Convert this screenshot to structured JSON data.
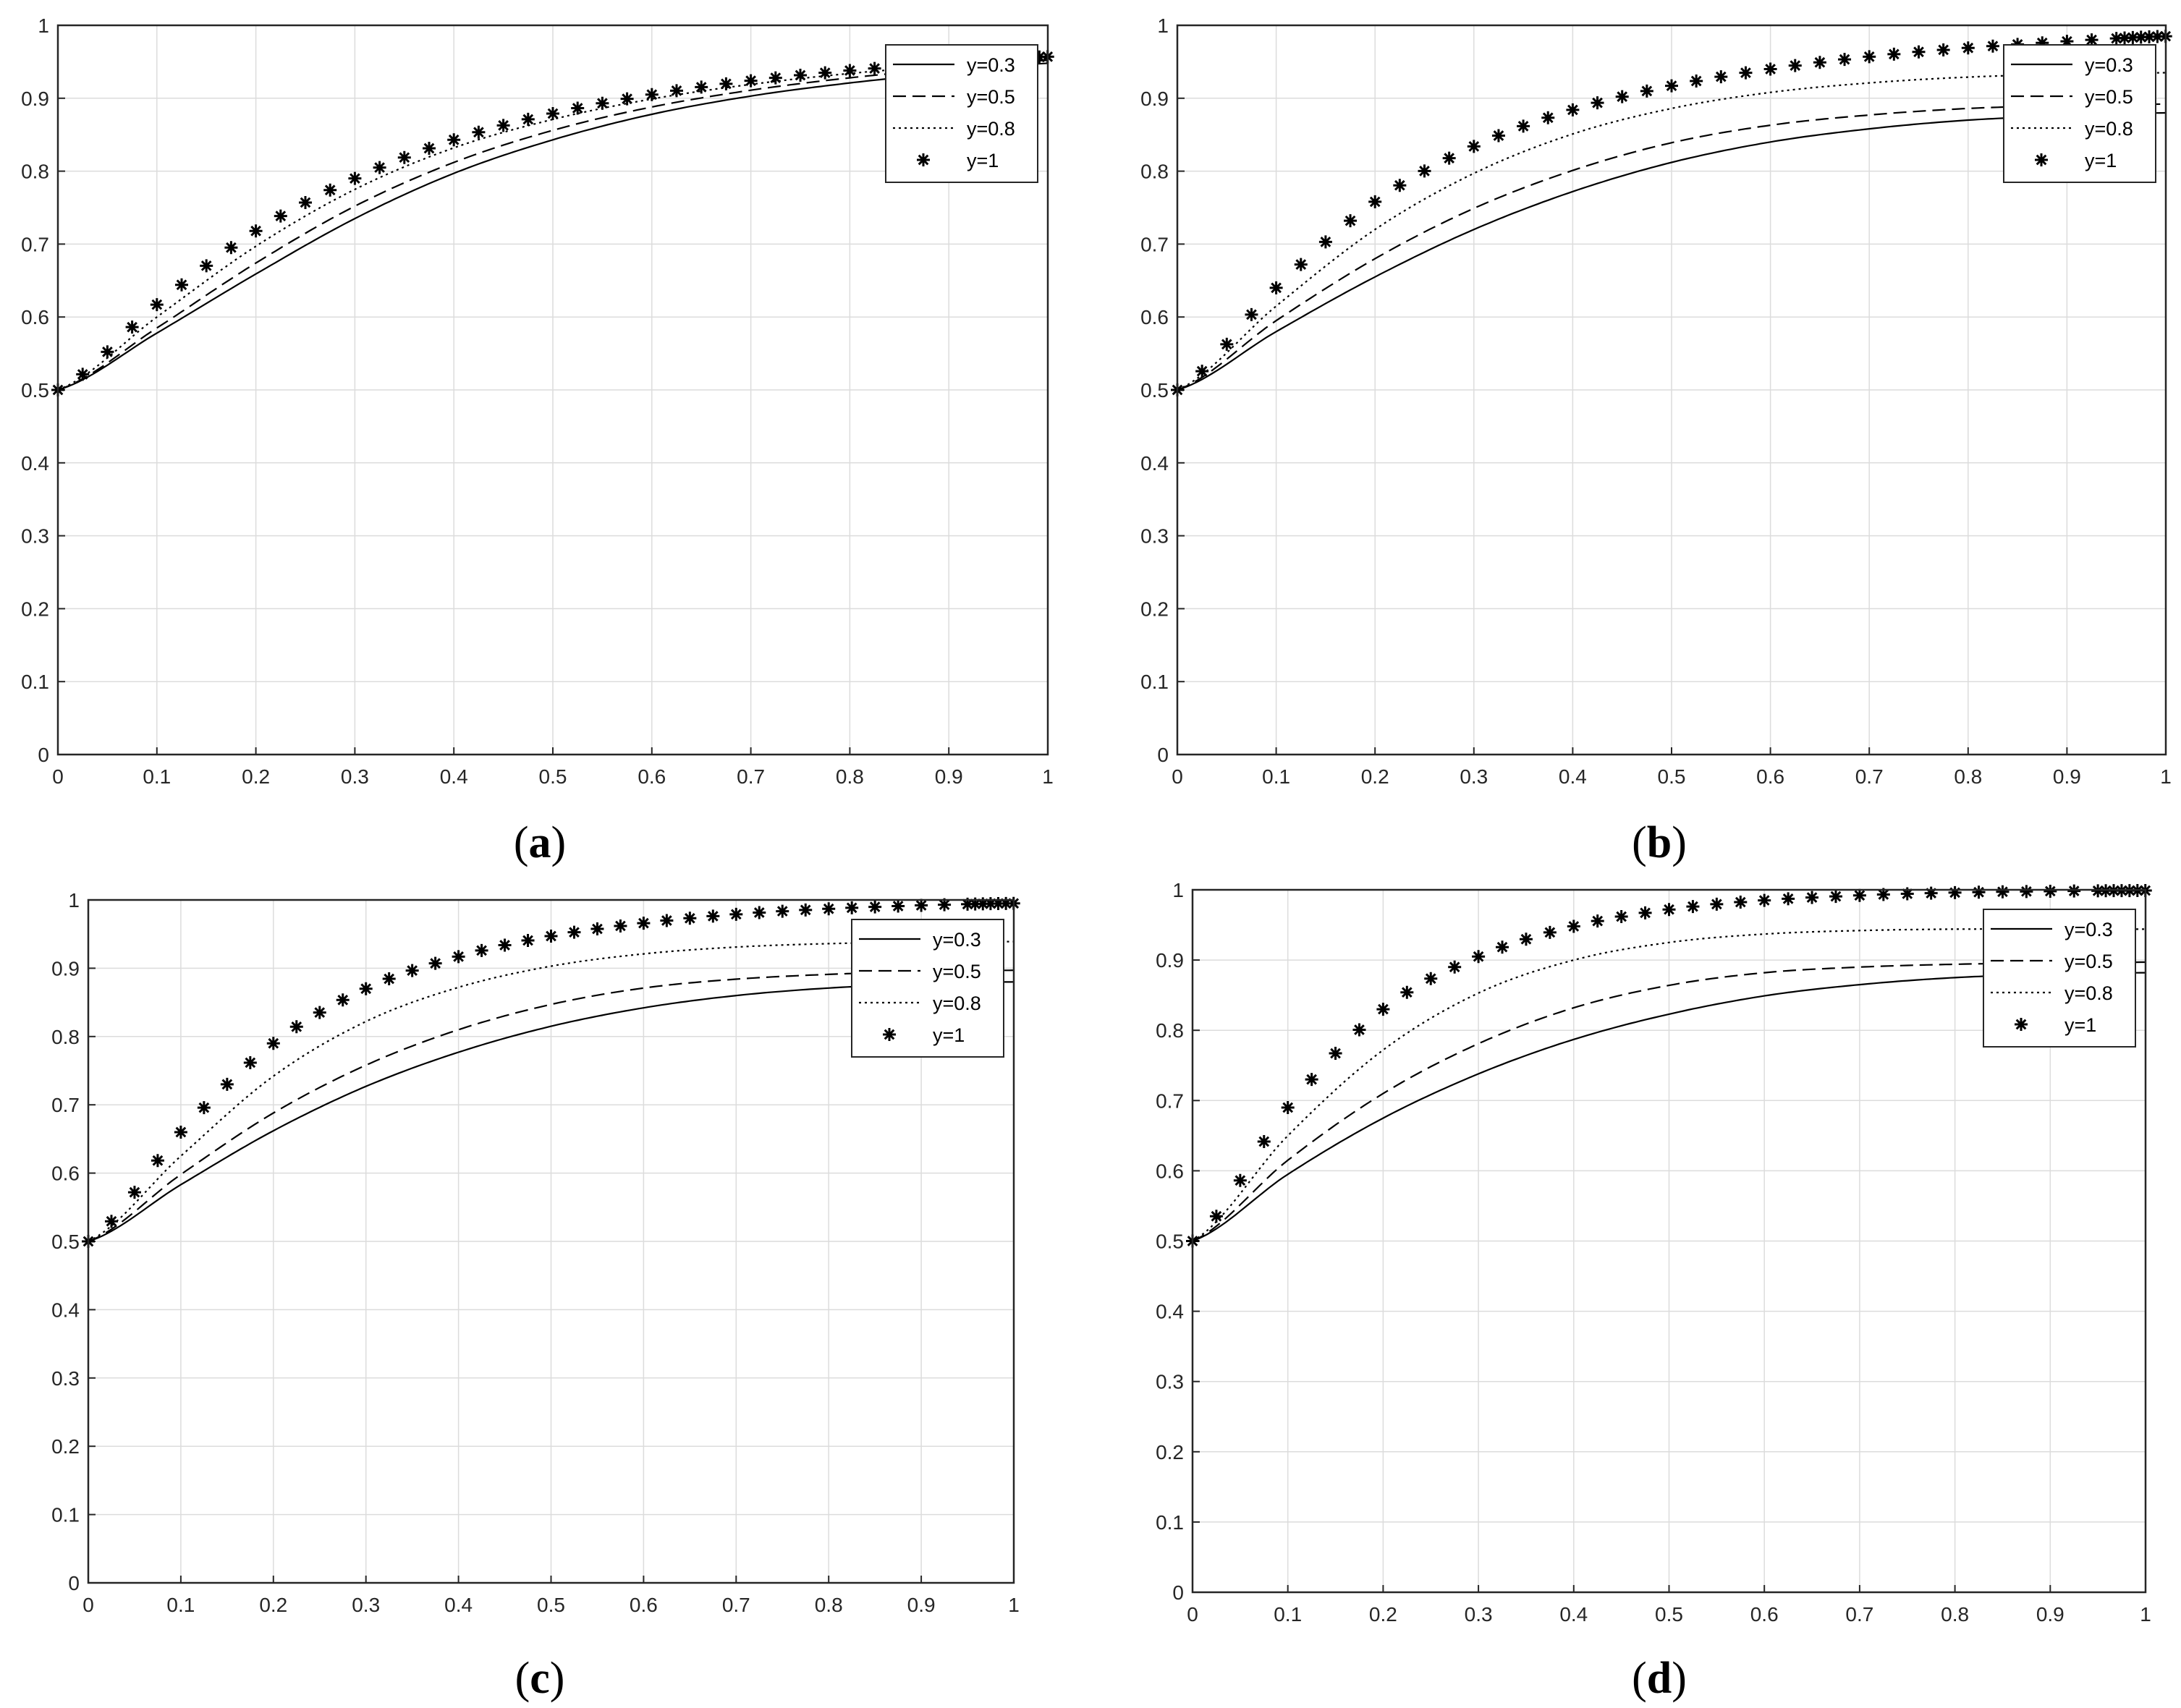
{
  "chart_data": [
    {
      "type": "line",
      "caption": "(a)",
      "caption_letter": "a",
      "xlim": [
        0,
        1
      ],
      "ylim": [
        0,
        1
      ],
      "x_ticks": [
        "0",
        "0.1",
        "0.2",
        "0.3",
        "0.4",
        "0.5",
        "0.6",
        "0.7",
        "0.8",
        "0.9",
        "1"
      ],
      "y_ticks": [
        "0",
        "0.1",
        "0.2",
        "0.3",
        "0.4",
        "0.5",
        "0.6",
        "0.7",
        "0.8",
        "0.9",
        "1"
      ],
      "grid": true,
      "legend_position": "top-right",
      "series": [
        {
          "name": "y=0.3",
          "style": "solid",
          "x": [
            0,
            0.1,
            0.2,
            0.3,
            0.4,
            0.5,
            0.6,
            0.7,
            0.8,
            0.9,
            1.0
          ],
          "values": [
            0.5,
            0.578,
            0.659,
            0.735,
            0.797,
            0.843,
            0.878,
            0.903,
            0.921,
            0.935,
            0.948
          ]
        },
        {
          "name": "y=0.5",
          "style": "dashed",
          "x": [
            0,
            0.1,
            0.2,
            0.3,
            0.4,
            0.5,
            0.6,
            0.7,
            0.8,
            0.9,
            1.0
          ],
          "values": [
            0.5,
            0.585,
            0.674,
            0.752,
            0.812,
            0.856,
            0.888,
            0.911,
            0.928,
            0.941,
            0.952
          ]
        },
        {
          "name": "y=0.8",
          "style": "dotted",
          "x": [
            0,
            0.1,
            0.2,
            0.3,
            0.4,
            0.5,
            0.6,
            0.7,
            0.8,
            0.9,
            1.0
          ],
          "values": [
            0.5,
            0.6,
            0.697,
            0.775,
            0.832,
            0.871,
            0.899,
            0.919,
            0.934,
            0.945,
            0.955
          ]
        },
        {
          "name": "y=1",
          "style": "asterisk",
          "x": [
            0,
            0.1,
            0.2,
            0.3,
            0.4,
            0.5,
            0.6,
            0.7,
            0.8,
            0.9,
            1.0
          ],
          "values": [
            0.5,
            0.617,
            0.718,
            0.79,
            0.843,
            0.879,
            0.905,
            0.924,
            0.938,
            0.948,
            0.957
          ]
        }
      ]
    },
    {
      "type": "line",
      "caption": "(b)",
      "caption_letter": "b",
      "xlim": [
        0,
        1
      ],
      "ylim": [
        0,
        1
      ],
      "x_ticks": [
        "0",
        "0.1",
        "0.2",
        "0.3",
        "0.4",
        "0.5",
        "0.6",
        "0.7",
        "0.8",
        "0.9",
        "1"
      ],
      "y_ticks": [
        "0",
        "0.1",
        "0.2",
        "0.3",
        "0.4",
        "0.5",
        "0.6",
        "0.7",
        "0.8",
        "0.9",
        "1"
      ],
      "grid": true,
      "legend_position": "top-right",
      "series": [
        {
          "name": "y=0.3",
          "style": "solid",
          "x": [
            0,
            0.1,
            0.2,
            0.3,
            0.4,
            0.5,
            0.6,
            0.7,
            0.8,
            0.9,
            1.0
          ],
          "values": [
            0.5,
            0.58,
            0.655,
            0.72,
            0.772,
            0.812,
            0.84,
            0.858,
            0.87,
            0.876,
            0.88
          ]
        },
        {
          "name": "y=0.5",
          "style": "dashed",
          "x": [
            0,
            0.1,
            0.2,
            0.3,
            0.4,
            0.5,
            0.6,
            0.7,
            0.8,
            0.9,
            1.0
          ],
          "values": [
            0.5,
            0.595,
            0.68,
            0.749,
            0.801,
            0.839,
            0.863,
            0.877,
            0.886,
            0.89,
            0.892
          ]
        },
        {
          "name": "y=0.8",
          "style": "dotted",
          "x": [
            0,
            0.1,
            0.2,
            0.3,
            0.4,
            0.5,
            0.6,
            0.7,
            0.8,
            0.9,
            1.0
          ],
          "values": [
            0.5,
            0.615,
            0.72,
            0.797,
            0.851,
            0.886,
            0.908,
            0.921,
            0.929,
            0.933,
            0.935
          ]
        },
        {
          "name": "y=1",
          "style": "asterisk",
          "x": [
            0,
            0.1,
            0.2,
            0.3,
            0.4,
            0.5,
            0.6,
            0.7,
            0.8,
            0.9,
            1.0
          ],
          "values": [
            0.5,
            0.64,
            0.758,
            0.834,
            0.884,
            0.917,
            0.94,
            0.957,
            0.969,
            0.978,
            0.985
          ]
        }
      ]
    },
    {
      "type": "line",
      "caption": "(c)",
      "caption_letter": "c",
      "xlim": [
        0,
        1
      ],
      "ylim": [
        0,
        1
      ],
      "x_ticks": [
        "0",
        "0.1",
        "0.2",
        "0.3",
        "0.4",
        "0.5",
        "0.6",
        "0.7",
        "0.8",
        "0.9",
        "1"
      ],
      "y_ticks": [
        "0",
        "0.1",
        "0.2",
        "0.3",
        "0.4",
        "0.5",
        "0.6",
        "0.7",
        "0.8",
        "0.9",
        "1"
      ],
      "grid": true,
      "legend_position": "top-right",
      "series": [
        {
          "name": "y=0.3",
          "style": "solid",
          "x": [
            0,
            0.1,
            0.2,
            0.3,
            0.4,
            0.5,
            0.6,
            0.7,
            0.8,
            0.9,
            1.0
          ],
          "values": [
            0.5,
            0.583,
            0.662,
            0.727,
            0.777,
            0.815,
            0.842,
            0.86,
            0.871,
            0.877,
            0.88
          ]
        },
        {
          "name": "y=0.5",
          "style": "dashed",
          "x": [
            0,
            0.1,
            0.2,
            0.3,
            0.4,
            0.5,
            0.6,
            0.7,
            0.8,
            0.9,
            1.0
          ],
          "values": [
            0.5,
            0.598,
            0.688,
            0.758,
            0.81,
            0.847,
            0.871,
            0.884,
            0.891,
            0.895,
            0.897
          ]
        },
        {
          "name": "y=0.8",
          "style": "dotted",
          "x": [
            0,
            0.1,
            0.2,
            0.3,
            0.4,
            0.5,
            0.6,
            0.7,
            0.8,
            0.9,
            1.0
          ],
          "values": [
            0.5,
            0.625,
            0.742,
            0.822,
            0.872,
            0.903,
            0.921,
            0.931,
            0.936,
            0.938,
            0.939
          ]
        },
        {
          "name": "y=1",
          "style": "asterisk",
          "x": [
            0,
            0.1,
            0.2,
            0.3,
            0.4,
            0.5,
            0.6,
            0.7,
            0.8,
            0.9,
            1.0
          ],
          "values": [
            0.5,
            0.66,
            0.79,
            0.87,
            0.917,
            0.947,
            0.966,
            0.979,
            0.987,
            0.992,
            0.995
          ]
        }
      ]
    },
    {
      "type": "line",
      "caption": "(d)",
      "caption_letter": "d",
      "xlim": [
        0,
        1
      ],
      "ylim": [
        0,
        1
      ],
      "x_ticks": [
        "0",
        "0.1",
        "0.2",
        "0.3",
        "0.4",
        "0.5",
        "0.6",
        "0.7",
        "0.8",
        "0.9",
        "1"
      ],
      "y_ticks": [
        "0",
        "0.1",
        "0.2",
        "0.3",
        "0.4",
        "0.5",
        "0.6",
        "0.7",
        "0.8",
        "0.9",
        "1"
      ],
      "grid": true,
      "legend_position": "top-right",
      "series": [
        {
          "name": "y=0.3",
          "style": "solid",
          "x": [
            0,
            0.1,
            0.2,
            0.3,
            0.4,
            0.5,
            0.6,
            0.7,
            0.8,
            0.9,
            1.0
          ],
          "values": [
            0.5,
            0.595,
            0.675,
            0.738,
            0.787,
            0.823,
            0.849,
            0.865,
            0.875,
            0.88,
            0.882
          ]
        },
        {
          "name": "y=0.5",
          "style": "dashed",
          "x": [
            0,
            0.1,
            0.2,
            0.3,
            0.4,
            0.5,
            0.6,
            0.7,
            0.8,
            0.9,
            1.0
          ],
          "values": [
            0.5,
            0.615,
            0.71,
            0.781,
            0.832,
            0.864,
            0.882,
            0.89,
            0.894,
            0.896,
            0.897
          ]
        },
        {
          "name": "y=0.8",
          "style": "dotted",
          "x": [
            0,
            0.1,
            0.2,
            0.3,
            0.4,
            0.5,
            0.6,
            0.7,
            0.8,
            0.9,
            1.0
          ],
          "values": [
            0.5,
            0.65,
            0.772,
            0.853,
            0.9,
            0.925,
            0.937,
            0.942,
            0.944,
            0.944,
            0.944
          ]
        },
        {
          "name": "y=1",
          "style": "asterisk",
          "x": [
            0,
            0.1,
            0.2,
            0.3,
            0.4,
            0.5,
            0.6,
            0.7,
            0.8,
            0.9,
            1.0
          ],
          "values": [
            0.5,
            0.69,
            0.83,
            0.905,
            0.948,
            0.972,
            0.985,
            0.992,
            0.996,
            0.998,
            0.999
          ]
        }
      ]
    }
  ],
  "colors": {
    "line": "#000000",
    "grid": "#dcdcdc",
    "axis": "#262626",
    "background": "#ffffff"
  }
}
